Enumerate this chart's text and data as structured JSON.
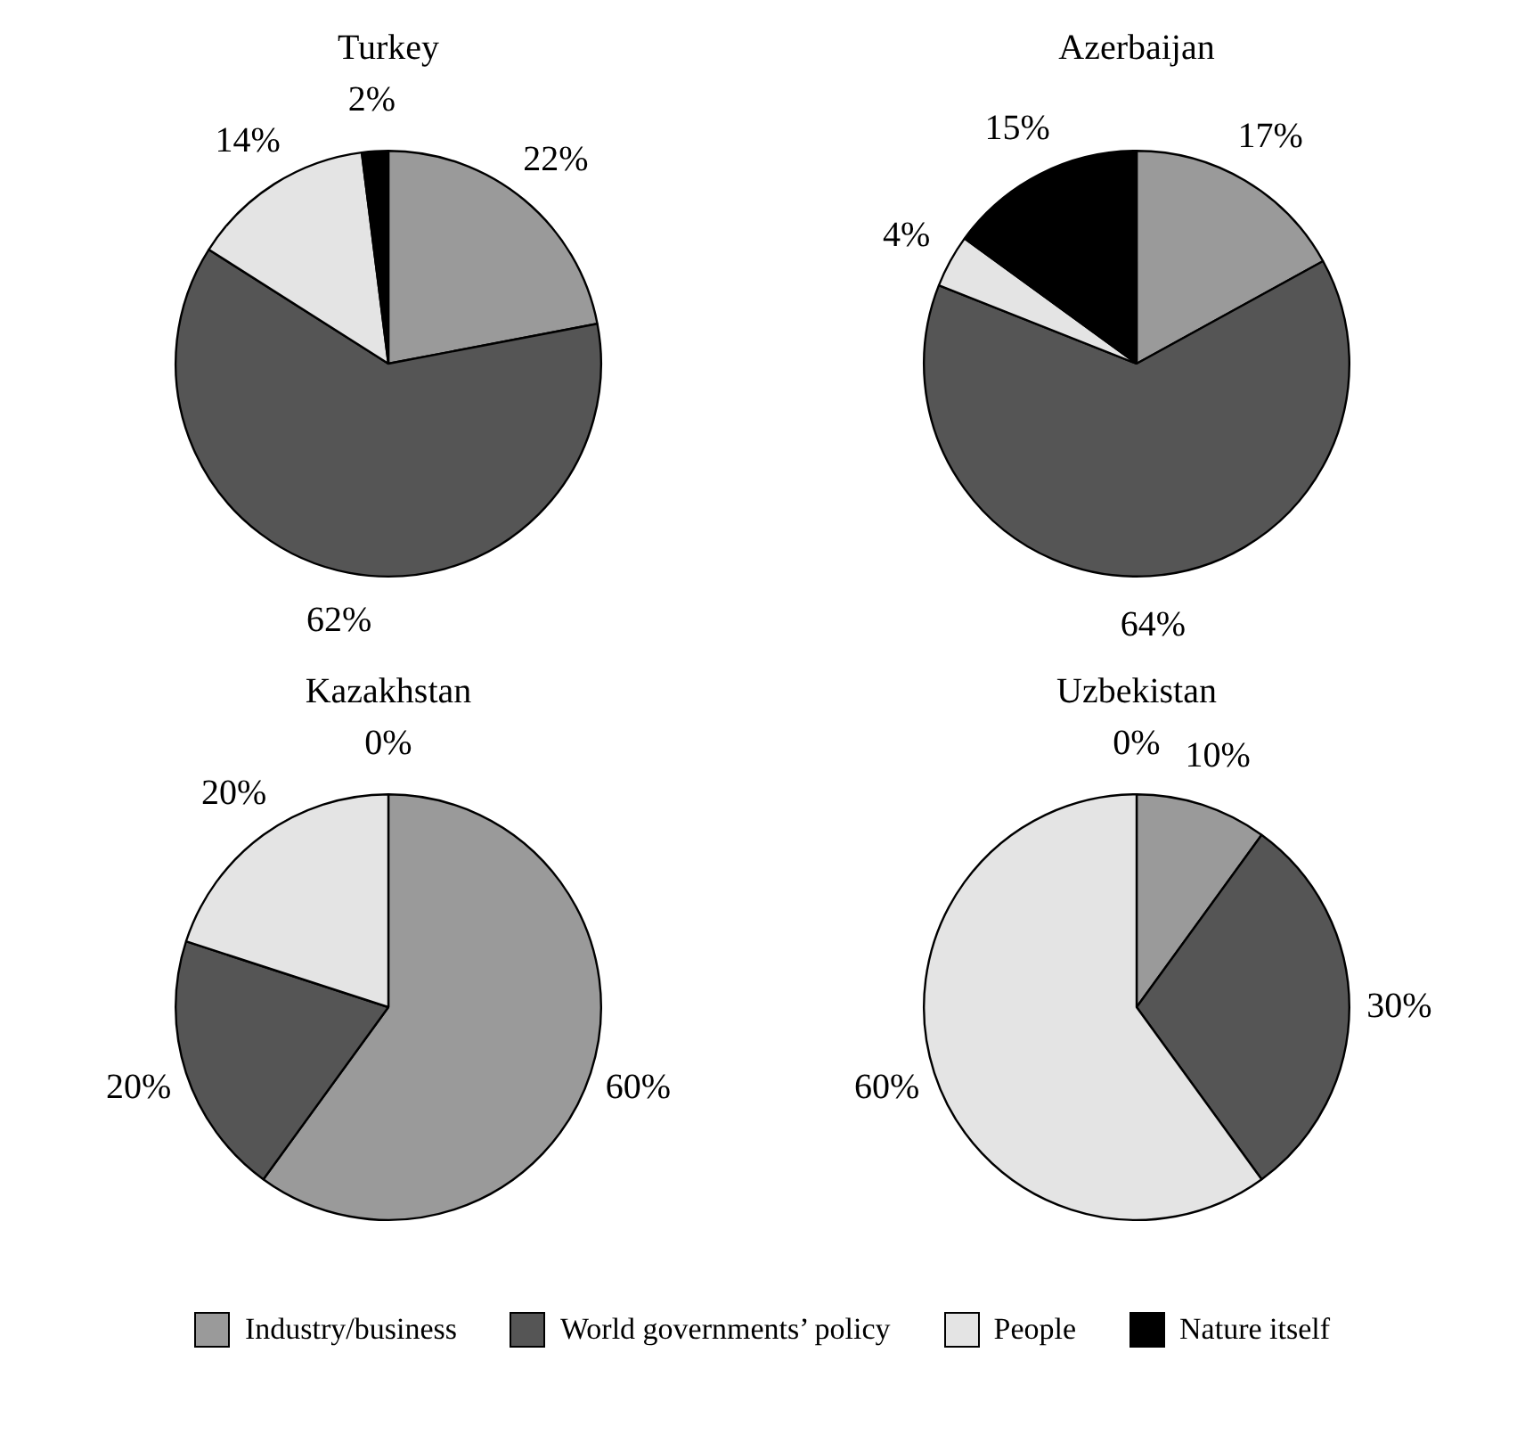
{
  "chart_data": [
    {
      "type": "pie",
      "title": "Turkey",
      "categories": [
        null,
        null,
        null,
        null
      ],
      "values": [
        22,
        62,
        14,
        2
      ],
      "value_labels": [
        "22%",
        "62%",
        "14%",
        "2%"
      ],
      "colors": [
        "#9a9a9a",
        "#555555",
        "#e4e4e4",
        "#000000"
      ]
    },
    {
      "type": "pie",
      "title": "Azerbaijan",
      "categories": [
        null,
        null,
        null,
        null
      ],
      "values": [
        17,
        64,
        4,
        15
      ],
      "value_labels": [
        "17%",
        "64%",
        "4%",
        "15%"
      ],
      "colors": [
        "#9a9a9a",
        "#555555",
        "#e4e4e4",
        "#000000"
      ]
    },
    {
      "type": "pie",
      "title": "Kazakhstan",
      "categories": [
        null,
        null,
        null,
        null
      ],
      "values": [
        60,
        20,
        20,
        0
      ],
      "value_labels": [
        "60%",
        "20%",
        "20%",
        "0%"
      ],
      "colors": [
        "#9a9a9a",
        "#555555",
        "#e4e4e4",
        "#000000"
      ]
    },
    {
      "type": "pie",
      "title": "Uzbekistan",
      "categories": [
        "Industry/business",
        "World governments’ policy",
        "People",
        "Nature itself"
      ],
      "values": [
        10,
        30,
        60,
        0
      ],
      "value_labels": [
        "10%",
        "30%",
        "60%",
        "0%"
      ],
      "colors": [
        "#9a9a9a",
        "#555555",
        "#e4e4e4",
        "#000000"
      ],
      "legend": "bottom"
    }
  ]
}
